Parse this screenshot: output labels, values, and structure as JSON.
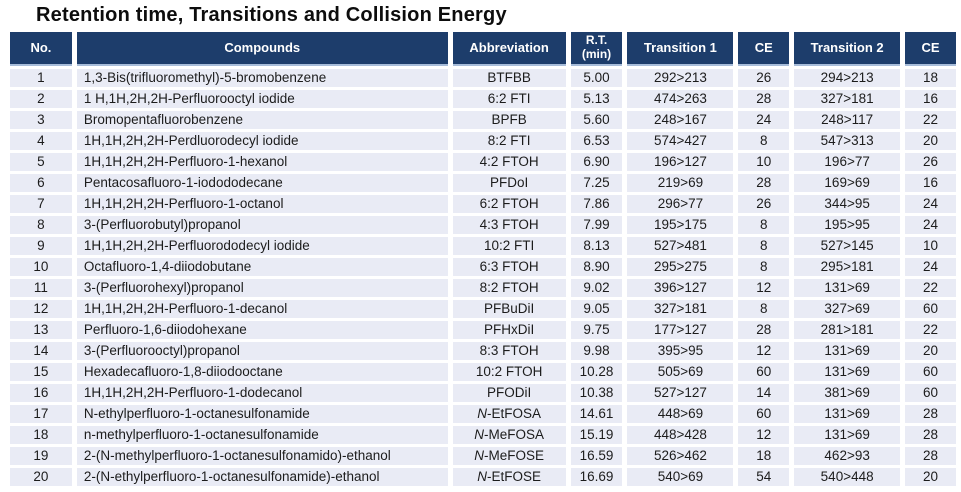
{
  "title": "Retention time, Transitions and Collision Energy",
  "colors": {
    "header_bg": "#1d3d6b",
    "header_border": "#a7bcd9",
    "row_bg": "#e9ebf5"
  },
  "table": {
    "headers": [
      "No.",
      "Compounds",
      "Abbreviation",
      "R.T.\n(min)",
      "Transition 1",
      "CE",
      "Transition 2",
      "CE"
    ],
    "rows": [
      {
        "no": "1",
        "compound": "1,3-Bis(trifluoromethyl)-5-bromobenzene",
        "abbr": "BTFBB",
        "abbr_italic_n": false,
        "rt": "5.00",
        "t1": "292>213",
        "ce1": "26",
        "t2": "294>213",
        "ce2": "18"
      },
      {
        "no": "2",
        "compound": "1 H,1H,2H,2H-Perfluorooctyl iodide",
        "abbr": "6:2 FTI",
        "abbr_italic_n": false,
        "rt": "5.13",
        "t1": "474>263",
        "ce1": "28",
        "t2": "327>181",
        "ce2": "16"
      },
      {
        "no": "3",
        "compound": "Bromopentafluorobenzene",
        "abbr": "BPFB",
        "abbr_italic_n": false,
        "rt": "5.60",
        "t1": "248>167",
        "ce1": "24",
        "t2": "248>117",
        "ce2": "22"
      },
      {
        "no": "4",
        "compound": "1H,1H,2H,2H-Perdluorodecyl iodide",
        "abbr": "8:2 FTI",
        "abbr_italic_n": false,
        "rt": "6.53",
        "t1": "574>427",
        "ce1": "8",
        "t2": "547>313",
        "ce2": "20"
      },
      {
        "no": "5",
        "compound": "1H,1H,2H,2H-Perfluoro-1-hexanol",
        "abbr": "4:2 FTOH",
        "abbr_italic_n": false,
        "rt": "6.90",
        "t1": "196>127",
        "ce1": "10",
        "t2": "196>77",
        "ce2": "26"
      },
      {
        "no": "6",
        "compound": "Pentacosafluoro-1-iodododecane",
        "abbr": "PFDoI",
        "abbr_italic_n": false,
        "rt": "7.25",
        "t1": "219>69",
        "ce1": "28",
        "t2": "169>69",
        "ce2": "16"
      },
      {
        "no": "7",
        "compound": "1H,1H,2H,2H-Perfluoro-1-octanol",
        "abbr": "6:2 FTOH",
        "abbr_italic_n": false,
        "rt": "7.86",
        "t1": "296>77",
        "ce1": "26",
        "t2": "344>95",
        "ce2": "24"
      },
      {
        "no": "8",
        "compound": "3-(Perfluorobutyl)propanol",
        "abbr": "4:3 FTOH",
        "abbr_italic_n": false,
        "rt": "7.99",
        "t1": "195>175",
        "ce1": "8",
        "t2": "195>95",
        "ce2": "24"
      },
      {
        "no": "9",
        "compound": "1H,1H,2H,2H-Perfluorododecyl iodide",
        "abbr": "10:2 FTI",
        "abbr_italic_n": false,
        "rt": "8.13",
        "t1": "527>481",
        "ce1": "8",
        "t2": "527>145",
        "ce2": "10"
      },
      {
        "no": "10",
        "compound": "Octafluoro-1,4-diiodobutane",
        "abbr": "6:3 FTOH",
        "abbr_italic_n": false,
        "rt": "8.90",
        "t1": "295>275",
        "ce1": "8",
        "t2": "295>181",
        "ce2": "24"
      },
      {
        "no": "11",
        "compound": "3-(Perfluorohexyl)propanol",
        "abbr": "8:2 FTOH",
        "abbr_italic_n": false,
        "rt": "9.02",
        "t1": "396>127",
        "ce1": "12",
        "t2": "131>69",
        "ce2": "22"
      },
      {
        "no": "12",
        "compound": "1H,1H,2H,2H-Perfluoro-1-decanol",
        "abbr": "PFBuDiI",
        "abbr_italic_n": false,
        "rt": "9.05",
        "t1": "327>181",
        "ce1": "8",
        "t2": "327>69",
        "ce2": "60"
      },
      {
        "no": "13",
        "compound": "Perfluoro-1,6-diiodohexane",
        "abbr": "PFHxDiI",
        "abbr_italic_n": false,
        "rt": "9.75",
        "t1": "177>127",
        "ce1": "28",
        "t2": "281>181",
        "ce2": "22"
      },
      {
        "no": "14",
        "compound": "3-(Perfluorooctyl)propanol",
        "abbr": "8:3 FTOH",
        "abbr_italic_n": false,
        "rt": "9.98",
        "t1": "395>95",
        "ce1": "12",
        "t2": "131>69",
        "ce2": "20"
      },
      {
        "no": "15",
        "compound": "Hexadecafluoro-1,8-diiodooctane",
        "abbr": "10:2 FTOH",
        "abbr_italic_n": false,
        "rt": "10.28",
        "t1": "505>69",
        "ce1": "60",
        "t2": "131>69",
        "ce2": "60"
      },
      {
        "no": "16",
        "compound": "1H,1H,2H,2H-Perfluoro-1-dodecanol",
        "abbr": "PFODiI",
        "abbr_italic_n": false,
        "rt": "10.38",
        "t1": "527>127",
        "ce1": "14",
        "t2": "381>69",
        "ce2": "60"
      },
      {
        "no": "17",
        "compound": "N-ethylperfluoro-1-octanesulfonamide",
        "abbr": "N-EtFOSA",
        "abbr_italic_n": true,
        "rt": "14.61",
        "t1": "448>69",
        "ce1": "60",
        "t2": "131>69",
        "ce2": "28"
      },
      {
        "no": "18",
        "compound": "n-methylperfluoro-1-octanesulfonamide",
        "abbr": "N-MeFOSA",
        "abbr_italic_n": true,
        "rt": "15.19",
        "t1": "448>428",
        "ce1": "12",
        "t2": "131>69",
        "ce2": "28"
      },
      {
        "no": "19",
        "compound": "2-(N-methylperfluoro-1-octanesulfonamido)-ethanol",
        "abbr": "N-MeFOSE",
        "abbr_italic_n": true,
        "rt": "16.59",
        "t1": "526>462",
        "ce1": "18",
        "t2": "462>93",
        "ce2": "28"
      },
      {
        "no": "20",
        "compound": "2-(N-ethylperfluoro-1-octanesulfonamide)-ethanol",
        "abbr": "N-EtFOSE",
        "abbr_italic_n": true,
        "rt": "16.69",
        "t1": "540>69",
        "ce1": "54",
        "t2": "540>448",
        "ce2": "20"
      }
    ]
  }
}
